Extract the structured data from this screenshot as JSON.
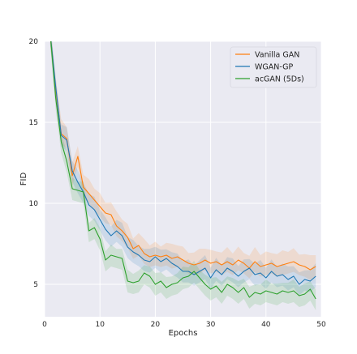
{
  "chart_data": {
    "type": "line",
    "xlabel": "Epochs",
    "ylabel": "FID",
    "xlim": [
      0,
      50
    ],
    "ylim": [
      3,
      20
    ],
    "x_ticks": [
      0,
      10,
      20,
      30,
      40,
      50
    ],
    "y_ticks": [
      5,
      10,
      15,
      20
    ],
    "grid": true,
    "legend_position": "top-right",
    "x": [
      1,
      2,
      3,
      4,
      5,
      6,
      7,
      8,
      9,
      10,
      11,
      12,
      13,
      14,
      15,
      16,
      17,
      18,
      19,
      20,
      21,
      22,
      23,
      24,
      25,
      26,
      27,
      28,
      29,
      30,
      31,
      32,
      33,
      34,
      35,
      36,
      37,
      38,
      39,
      40,
      41,
      42,
      43,
      44,
      45,
      46,
      47,
      48,
      49
    ],
    "series": [
      {
        "name": "Vanilla GAN",
        "color": "#ff7f0e",
        "values": [
          20.5,
          17.0,
          14.3,
          14.0,
          11.7,
          12.9,
          11.0,
          10.6,
          10.2,
          9.8,
          9.4,
          9.3,
          8.6,
          8.3,
          7.9,
          7.2,
          7.4,
          6.9,
          6.7,
          6.8,
          6.7,
          6.8,
          6.6,
          6.7,
          6.5,
          6.3,
          6.2,
          6.3,
          6.5,
          6.3,
          6.4,
          6.2,
          6.4,
          6.2,
          6.5,
          6.3,
          6.0,
          6.4,
          6.1,
          6.2,
          6.3,
          6.1,
          6.2,
          6.3,
          6.4,
          6.2,
          6.1,
          5.9,
          6.1
        ],
        "band": 0.9
      },
      {
        "name": "WGAN-GP",
        "color": "#1f77b4",
        "values": [
          20.5,
          17.2,
          14.2,
          13.9,
          12.0,
          11.3,
          10.7,
          9.9,
          9.6,
          9.0,
          8.4,
          8.0,
          8.3,
          8.0,
          7.3,
          7.0,
          6.8,
          6.5,
          6.4,
          6.7,
          6.4,
          6.6,
          6.3,
          6.1,
          5.8,
          5.8,
          5.6,
          5.8,
          6.0,
          5.4,
          5.9,
          5.6,
          6.0,
          5.8,
          5.5,
          5.8,
          6.0,
          5.6,
          5.7,
          5.4,
          5.8,
          5.5,
          5.6,
          5.3,
          5.5,
          5.0,
          5.3,
          5.2,
          5.5
        ],
        "band": 0.8
      },
      {
        "name": "acGAN (5Ds)",
        "color": "#2ca02c",
        "values": [
          20.5,
          16.5,
          13.8,
          12.6,
          10.9,
          10.8,
          10.7,
          8.3,
          8.5,
          7.8,
          6.5,
          6.8,
          6.7,
          6.6,
          5.2,
          5.1,
          5.2,
          5.7,
          5.5,
          5.0,
          5.2,
          4.8,
          5.0,
          5.1,
          5.4,
          5.5,
          5.8,
          5.4,
          5.0,
          4.7,
          4.9,
          4.5,
          5.0,
          4.8,
          4.5,
          4.8,
          4.2,
          4.5,
          4.4,
          4.6,
          4.5,
          4.4,
          4.6,
          4.5,
          4.6,
          4.3,
          4.4,
          4.7,
          4.1
        ],
        "band": 0.7
      }
    ]
  }
}
